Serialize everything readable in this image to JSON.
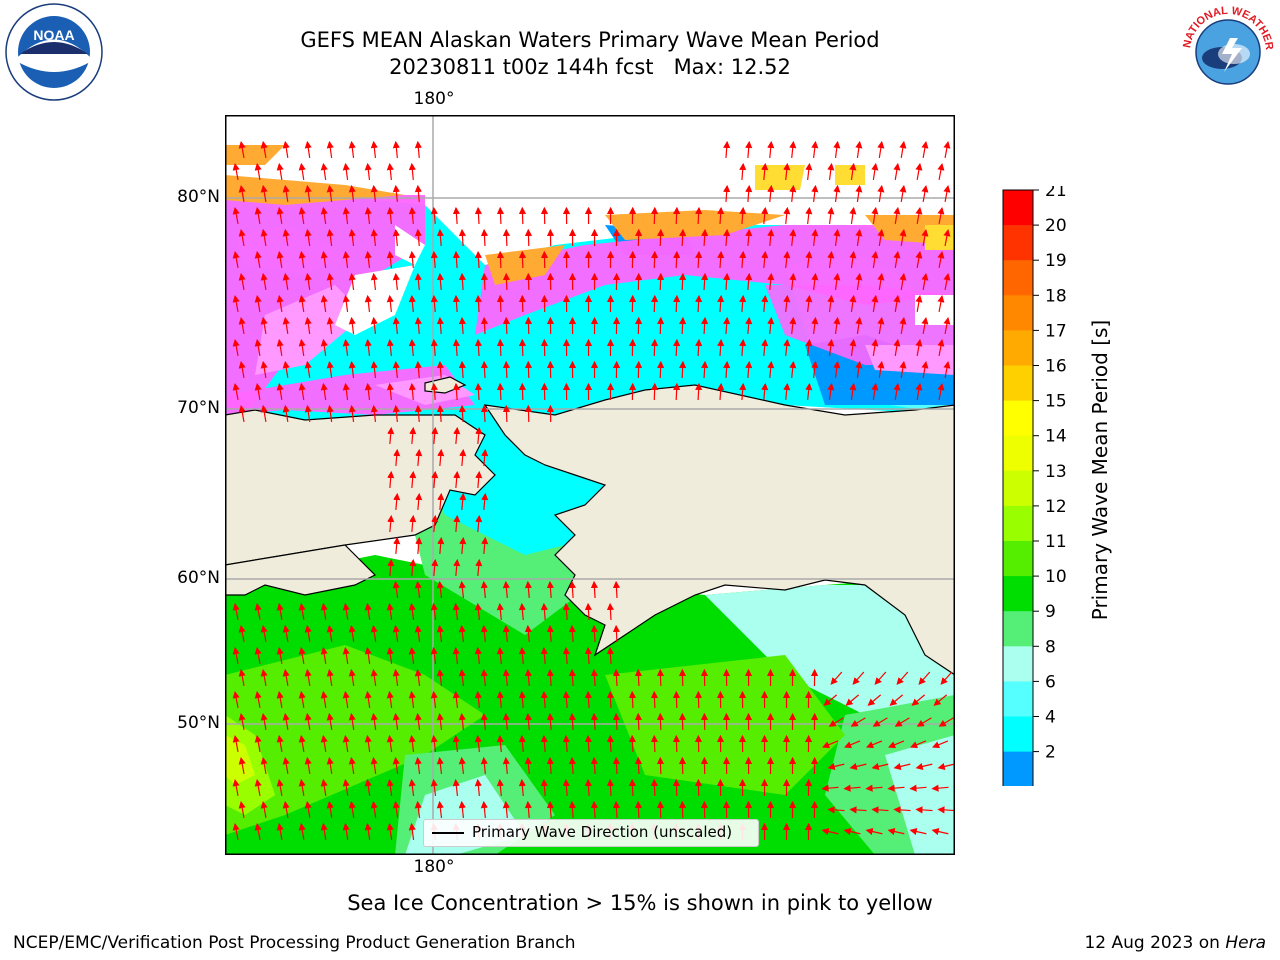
{
  "title": {
    "line1": "GEFS MEAN Alaskan Waters Primary Wave Mean Period",
    "line2": "20230811 t00z 144h fcst   Max: 12.52"
  },
  "map": {
    "lon_label_top": "180°",
    "lon_label_bottom": "180°",
    "lat_labels": [
      "80°N",
      "70°N",
      "60°N",
      "50°N"
    ],
    "land_color": "#efecdc",
    "ice_colors": [
      "#ff66ff",
      "#ff99ff",
      "#ffaa33",
      "#ffdd33"
    ]
  },
  "legend": {
    "label": "Primary Wave Direction (unscaled)"
  },
  "colorbar": {
    "title": "Primary Wave Mean Period [s]",
    "ticks": [
      "21",
      "20",
      "19",
      "18",
      "17",
      "16",
      "15",
      "14",
      "13",
      "12",
      "11",
      "10",
      "9",
      "8",
      "6",
      "4",
      "2"
    ],
    "colors": [
      "#ff0000",
      "#ff3300",
      "#ff6600",
      "#ff8800",
      "#ffaa00",
      "#ffd000",
      "#ffff00",
      "#eeff00",
      "#ccff00",
      "#99ff00",
      "#55ee00",
      "#00dd00",
      "#55ee77",
      "#aaffee",
      "#55ffff",
      "#00ffff",
      "#0099ff",
      "#0000ff"
    ],
    "extend_color": "#0000ff"
  },
  "caption": "Sea Ice Concentration > 15% is shown in pink to yellow",
  "footer": {
    "left": "NCEP/EMC/Verification Post Processing Product Generation Branch",
    "date": "12 Aug 2023 on ",
    "machine": "Hera"
  },
  "logos": {
    "noaa_text": "NOAA",
    "nws_text": "NATIONAL WEATHER SERVICE"
  }
}
